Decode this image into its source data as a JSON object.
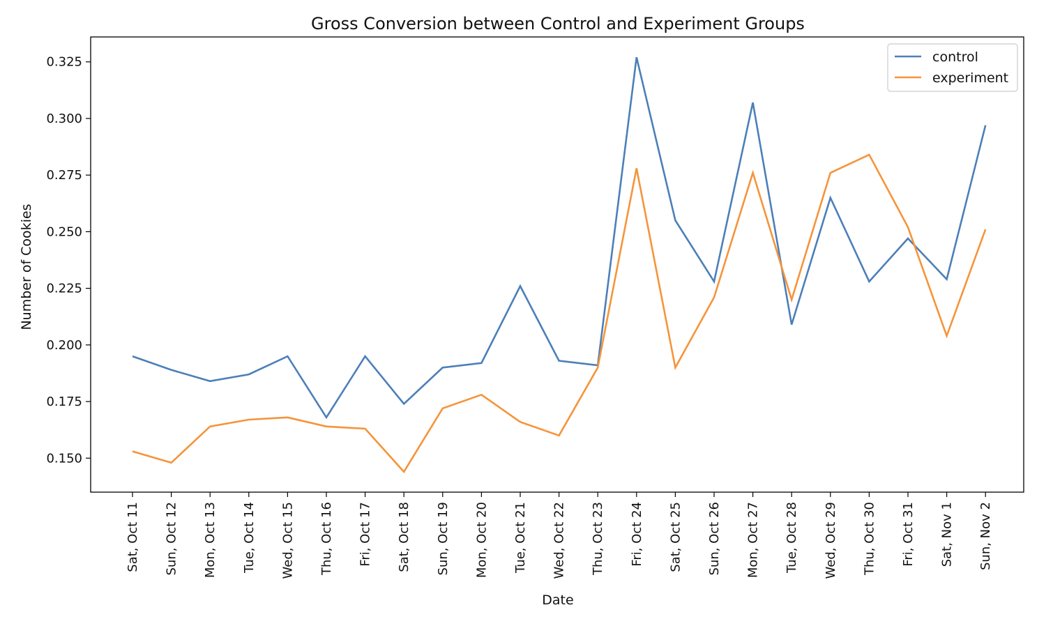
{
  "chart_data": {
    "type": "line",
    "title": "Gross Conversion between Control and Experiment Groups",
    "xlabel": "Date",
    "ylabel": "Number of Cookies",
    "categories": [
      "Sat, Oct 11",
      "Sun, Oct 12",
      "Mon, Oct 13",
      "Tue, Oct 14",
      "Wed, Oct 15",
      "Thu, Oct 16",
      "Fri, Oct 17",
      "Sat, Oct 18",
      "Sun, Oct 19",
      "Mon, Oct 20",
      "Tue, Oct 21",
      "Wed, Oct 22",
      "Thu, Oct 23",
      "Fri, Oct 24",
      "Sat, Oct 25",
      "Sun, Oct 26",
      "Mon, Oct 27",
      "Tue, Oct 28",
      "Wed, Oct 29",
      "Thu, Oct 30",
      "Fri, Oct 31",
      "Sat, Nov 1",
      "Sun, Nov 2"
    ],
    "series": [
      {
        "name": "control",
        "color": "#4c7fb8",
        "values": [
          0.195,
          0.189,
          0.184,
          0.187,
          0.195,
          0.168,
          0.195,
          0.174,
          0.19,
          0.192,
          0.226,
          0.193,
          0.191,
          0.327,
          0.255,
          0.228,
          0.307,
          0.209,
          0.265,
          0.228,
          0.247,
          0.229,
          0.297
        ]
      },
      {
        "name": "experiment",
        "color": "#f5943a",
        "values": [
          0.153,
          0.148,
          0.164,
          0.167,
          0.168,
          0.164,
          0.163,
          0.144,
          0.172,
          0.178,
          0.166,
          0.16,
          0.19,
          0.278,
          0.19,
          0.221,
          0.276,
          0.22,
          0.276,
          0.284,
          0.252,
          0.204,
          0.251
        ]
      }
    ],
    "yticks": [
      "0.150",
      "0.175",
      "0.200",
      "0.225",
      "0.250",
      "0.275",
      "0.300",
      "0.325"
    ],
    "ylim": [
      0.135,
      0.336
    ],
    "grid": false,
    "legend_position": "top-right"
  }
}
